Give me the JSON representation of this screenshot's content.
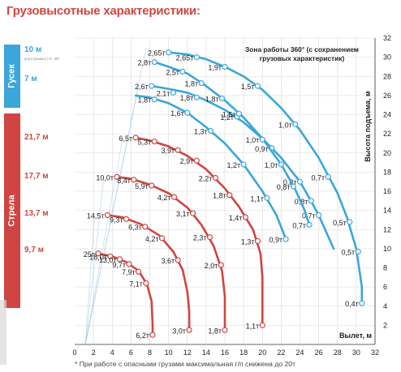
{
  "title": "Грузовысотные характеристики:",
  "sections": {
    "gusek": "Гусек",
    "strela": "Стрела"
  },
  "side_labels": {
    "blue": [
      "10 м",
      "7 м"
    ],
    "blue_sub": "угол гусека к / 0°, 30°",
    "red": [
      "21,7 м",
      "17,7 м",
      "13,7 м",
      "9,7 м"
    ]
  },
  "footnote": "* При работе с опасными грузами максимальная г/п снижена до 20т",
  "chart_data": {
    "type": "line",
    "title": "",
    "xlabel": "Вылет, м",
    "ylabel": "Высота подъема, м",
    "xlim": [
      0,
      32
    ],
    "ylim": [
      0,
      32
    ],
    "xticks": [
      0,
      2,
      4,
      6,
      8,
      10,
      12,
      14,
      16,
      18,
      20,
      22,
      24,
      26,
      28,
      30,
      32
    ],
    "yticks": [
      0,
      2,
      4,
      6,
      8,
      10,
      12,
      14,
      16,
      18,
      20,
      22,
      24,
      26,
      28,
      30,
      32
    ],
    "annotation": "Зона работы 360° (с сохранением грузовых характеристик)",
    "series": [
      {
        "name": "Гусек 10 м 0°",
        "color": "#3aa6dc",
        "curve": [
          [
            10,
            30.5
          ],
          [
            12,
            30.3
          ],
          [
            14,
            29.8
          ],
          [
            16,
            29.0
          ],
          [
            18,
            28.0
          ],
          [
            20,
            26.6
          ],
          [
            22,
            24.7
          ],
          [
            24,
            22.4
          ],
          [
            26,
            19.5
          ],
          [
            28,
            15.8
          ],
          [
            29,
            13.3
          ],
          [
            30,
            10.0
          ],
          [
            30.6,
            6.0
          ],
          [
            30.6,
            4.3
          ]
        ],
        "points": [
          {
            "x": 10,
            "y": 30.5,
            "label": "2,65т"
          },
          {
            "x": 13,
            "y": 30.0,
            "label": "2,65т"
          },
          {
            "x": 16,
            "y": 29.0,
            "label": "1,9т"
          },
          {
            "x": 19.5,
            "y": 27.0,
            "label": "1,5т"
          },
          {
            "x": 23.5,
            "y": 23.0,
            "label": "1,0т"
          },
          {
            "x": 27,
            "y": 17.5,
            "label": "0,7т"
          },
          {
            "x": 29.3,
            "y": 12.8,
            "label": "0,5т"
          },
          {
            "x": 30.2,
            "y": 9.7,
            "label": "0,5т"
          },
          {
            "x": 30.6,
            "y": 4.3,
            "label": "0,4т"
          }
        ]
      },
      {
        "name": "Гусек 10 м 30°",
        "color": "#3aa6dc",
        "curve": [
          [
            8.2,
            27.0
          ],
          [
            10,
            26.7
          ],
          [
            12,
            26.3
          ],
          [
            14,
            25.5
          ],
          [
            16,
            24.5
          ],
          [
            18,
            23.2
          ],
          [
            20,
            21.5
          ],
          [
            22,
            19.5
          ],
          [
            24,
            17.0
          ],
          [
            25,
            15.3
          ],
          [
            26,
            13.5
          ],
          [
            27,
            11.3
          ],
          [
            27.6,
            10.0
          ]
        ],
        "points": [
          {
            "x": 8.2,
            "y": 27.0,
            "label": "2,6т"
          },
          {
            "x": 10.5,
            "y": 26.3,
            "label": "2,1т"
          },
          {
            "x": 13,
            "y": 25.8,
            "label": "1,8т"
          },
          {
            "x": 17.3,
            "y": 23.8,
            "label": "1,2т"
          },
          {
            "x": 21,
            "y": 20.5,
            "label": "0,9т"
          },
          {
            "x": 24,
            "y": 17.0,
            "label": "0,8т"
          },
          {
            "x": 25.2,
            "y": 15.0,
            "label": "0,8т"
          },
          {
            "x": 26,
            "y": 13.5,
            "label": "0,7т"
          }
        ]
      },
      {
        "name": "Гусек 7 м 0°",
        "color": "#3aa6dc",
        "curve": [
          [
            8.5,
            29.5
          ],
          [
            10,
            29.0
          ],
          [
            12,
            28.3
          ],
          [
            14,
            27.0
          ],
          [
            16,
            25.5
          ],
          [
            18,
            23.7
          ],
          [
            20,
            21.5
          ],
          [
            22,
            18.8
          ],
          [
            23.5,
            16.2
          ],
          [
            24.5,
            14.0
          ],
          [
            25,
            12.5
          ]
        ],
        "points": [
          {
            "x": 8.5,
            "y": 29.5,
            "label": "2,8т"
          },
          {
            "x": 11.5,
            "y": 28.5,
            "label": "2,5т"
          },
          {
            "x": 13.5,
            "y": 27.3,
            "label": "1,8т"
          },
          {
            "x": 15.7,
            "y": 25.7,
            "label": "1,8т"
          },
          {
            "x": 17.5,
            "y": 24.1,
            "label": "1,5т"
          },
          {
            "x": 20,
            "y": 21.4,
            "label": "1,0т"
          },
          {
            "x": 22,
            "y": 18.8,
            "label": "1,0т"
          },
          {
            "x": 23.3,
            "y": 16.5,
            "label": "0,8т"
          },
          {
            "x": 25,
            "y": 12.5,
            "label": "0,7т"
          }
        ]
      },
      {
        "name": "Гусек 7 м 30°",
        "color": "#3aa6dc",
        "curve": [
          [
            6.5,
            26.0
          ],
          [
            8,
            25.8
          ],
          [
            10,
            25.2
          ],
          [
            12,
            24.2
          ],
          [
            14,
            22.7
          ],
          [
            16,
            21.0
          ],
          [
            18,
            18.8
          ],
          [
            20,
            16.0
          ],
          [
            21.5,
            13.5
          ],
          [
            22.5,
            11.0
          ]
        ],
        "points": [
          {
            "x": 8.5,
            "y": 25.6,
            "label": "1,8т"
          },
          {
            "x": 12,
            "y": 24.2,
            "label": "1,6т"
          },
          {
            "x": 14.5,
            "y": 22.3,
            "label": "1,3т"
          },
          {
            "x": 18,
            "y": 18.8,
            "label": "1,2т"
          },
          {
            "x": 20.5,
            "y": 15.3,
            "label": "1,1т"
          },
          {
            "x": 22.5,
            "y": 11.0,
            "label": "0,9т"
          }
        ]
      },
      {
        "name": "Стрела 21,7 м",
        "color": "#cf4541",
        "curve": [
          [
            6.5,
            21.6
          ],
          [
            8,
            21.3
          ],
          [
            10,
            20.7
          ],
          [
            12,
            19.7
          ],
          [
            14,
            18.3
          ],
          [
            16,
            16.3
          ],
          [
            17.5,
            14.4
          ],
          [
            19,
            12.0
          ],
          [
            19.8,
            9.5
          ],
          [
            20,
            7.0
          ],
          [
            20,
            2.0
          ]
        ],
        "points": [
          {
            "x": 6.5,
            "y": 21.6,
            "label": "6,5т"
          },
          {
            "x": 8.5,
            "y": 21.2,
            "label": "5,3т"
          },
          {
            "x": 11,
            "y": 20.3,
            "label": "3,9т"
          },
          {
            "x": 13,
            "y": 19.2,
            "label": "2,9т"
          },
          {
            "x": 15,
            "y": 17.4,
            "label": "2,2т"
          },
          {
            "x": 16.5,
            "y": 15.6,
            "label": "1,8т"
          },
          {
            "x": 18.2,
            "y": 13.3,
            "label": "1,4т"
          },
          {
            "x": 19.5,
            "y": 10.8,
            "label": "1,3т"
          },
          {
            "x": 20,
            "y": 2.0,
            "label": "1,1т"
          }
        ]
      },
      {
        "name": "Стрела 17,7 м",
        "color": "#cf4541",
        "curve": [
          [
            4.5,
            17.5
          ],
          [
            6,
            17.3
          ],
          [
            8,
            16.7
          ],
          [
            10,
            15.8
          ],
          [
            12,
            14.3
          ],
          [
            13.5,
            12.5
          ],
          [
            14.8,
            10.3
          ],
          [
            15.7,
            7.7
          ],
          [
            16,
            5.0
          ],
          [
            16,
            1.5
          ]
        ],
        "points": [
          {
            "x": 4.5,
            "y": 17.5,
            "label": "10,0т"
          },
          {
            "x": 6.3,
            "y": 17.2,
            "label": "8,4т"
          },
          {
            "x": 8.2,
            "y": 16.6,
            "label": "5,9т"
          },
          {
            "x": 10.6,
            "y": 15.4,
            "label": "4,2т"
          },
          {
            "x": 12.6,
            "y": 13.7,
            "label": "3,1т"
          },
          {
            "x": 14.4,
            "y": 11.2,
            "label": "2,3т"
          },
          {
            "x": 15.6,
            "y": 8.3,
            "label": "2,0т"
          },
          {
            "x": 16,
            "y": 1.5,
            "label": "1,8т"
          }
        ]
      },
      {
        "name": "Стрела 13,7 м",
        "color": "#cf4541",
        "curve": [
          [
            3.5,
            13.5
          ],
          [
            5,
            13.3
          ],
          [
            7,
            12.6
          ],
          [
            9,
            11.4
          ],
          [
            10.5,
            9.7
          ],
          [
            11.5,
            7.8
          ],
          [
            12,
            5.5
          ],
          [
            12.2,
            3.5
          ],
          [
            12.2,
            1.5
          ]
        ],
        "points": [
          {
            "x": 3.5,
            "y": 13.5,
            "label": "14,5т"
          },
          {
            "x": 5.5,
            "y": 13.1,
            "label": "9,3т"
          },
          {
            "x": 7.5,
            "y": 12.3,
            "label": "6,3т"
          },
          {
            "x": 9.3,
            "y": 11.1,
            "label": "4,2т"
          },
          {
            "x": 11,
            "y": 8.8,
            "label": "3,6т"
          },
          {
            "x": 12.2,
            "y": 1.5,
            "label": "3,0т"
          }
        ]
      },
      {
        "name": "Стрела 9,7 м",
        "color": "#cf4541",
        "curve": [
          [
            2.5,
            9.5
          ],
          [
            4,
            9.2
          ],
          [
            5.5,
            8.6
          ],
          [
            6.8,
            7.7
          ],
          [
            7.7,
            6.3
          ],
          [
            8.2,
            4.5
          ],
          [
            8.3,
            2.0
          ],
          [
            8.3,
            1.0
          ]
        ],
        "points": [
          {
            "x": 2.5,
            "y": 9.5,
            "label": "25т"
          },
          {
            "x": 3.8,
            "y": 9.2,
            "label": "18,0т"
          },
          {
            "x": 4.8,
            "y": 8.9,
            "label": "13,0т"
          },
          {
            "x": 5.8,
            "y": 8.4,
            "label": "9,7т"
          },
          {
            "x": 6.8,
            "y": 7.6,
            "label": "7,9т"
          },
          {
            "x": 7.6,
            "y": 6.4,
            "label": "7,1т"
          },
          {
            "x": 8.3,
            "y": 1.0,
            "label": "6,2т"
          }
        ]
      }
    ]
  }
}
